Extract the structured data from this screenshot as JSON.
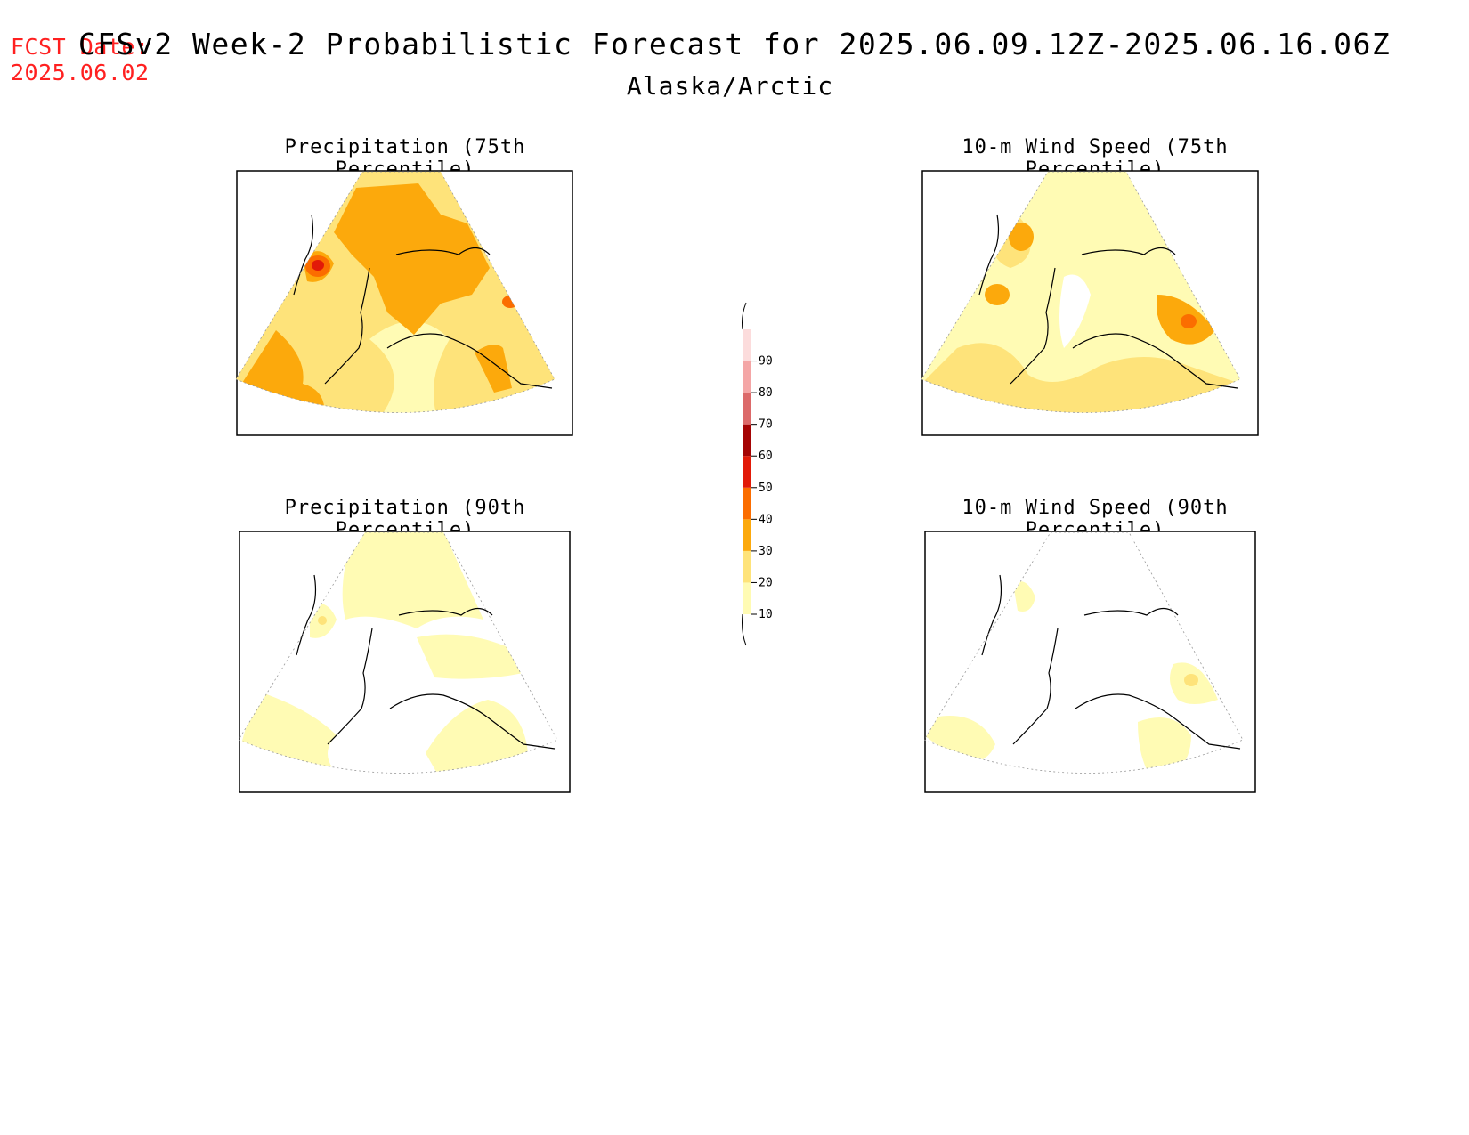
{
  "header": {
    "fcst_label": "FCST Date:",
    "fcst_date": "2025.06.02",
    "title": "CFSv2 Week-2 Probabilistic Forecast for 2025.06.09.12Z-2025.06.16.06Z",
    "subtitle": "Alaska/Arctic"
  },
  "panels": [
    {
      "title": "Precipitation (75th Percentile)"
    },
    {
      "title": "10-m Wind Speed (75th Percentile)"
    },
    {
      "title": "Precipitation (90th Percentile)"
    },
    {
      "title": "10-m Wind Speed (90th Percentile)"
    }
  ],
  "colorbar": {
    "levels": [
      "10",
      "20",
      "30",
      "40",
      "50",
      "60",
      "70",
      "80",
      "90"
    ],
    "colors": [
      "#fffbb4",
      "#fee37a",
      "#fca90c",
      "#fb6d00",
      "#e21a08",
      "#a50404",
      "#dc6a6a",
      "#f4a6a6",
      "#fcdcdc"
    ]
  }
}
